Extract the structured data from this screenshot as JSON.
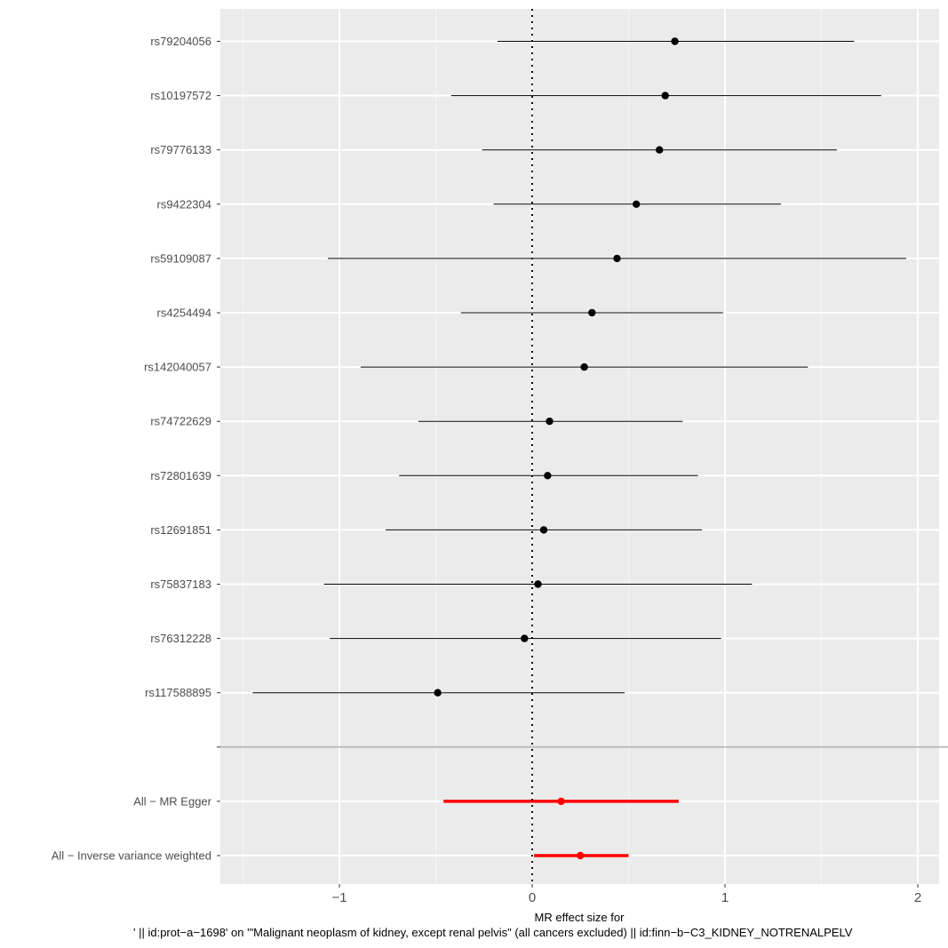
{
  "chart_data": {
    "type": "forest",
    "xlabel_line1": "MR effect size for",
    "xlabel_line2": "' || id:prot−a−1698' on '\"Malignant neoplasm of kidney, except renal pelvis\" (all cancers excluded) || id:finn−b−C3_KIDNEY_NOTRENALPELV",
    "xlim": [
      -1.6,
      2.12
    ],
    "x_ticks": [
      {
        "value": -1,
        "label": "−1"
      },
      {
        "value": 0,
        "label": "0"
      },
      {
        "value": 1,
        "label": "1"
      },
      {
        "value": 2,
        "label": "2"
      }
    ],
    "reference_line": 0,
    "rows": [
      {
        "label": "rs79204056",
        "b": 0.74,
        "lo": -0.18,
        "hi": 1.67,
        "color": "#000000",
        "summary": false
      },
      {
        "label": "rs10197572",
        "b": 0.69,
        "lo": -0.42,
        "hi": 1.81,
        "color": "#000000",
        "summary": false
      },
      {
        "label": "rs79776133",
        "b": 0.66,
        "lo": -0.26,
        "hi": 1.58,
        "color": "#000000",
        "summary": false
      },
      {
        "label": "rs9422304",
        "b": 0.54,
        "lo": -0.2,
        "hi": 1.29,
        "color": "#000000",
        "summary": false
      },
      {
        "label": "rs59109087",
        "b": 0.44,
        "lo": -1.06,
        "hi": 1.94,
        "color": "#000000",
        "summary": false
      },
      {
        "label": "rs4254494",
        "b": 0.31,
        "lo": -0.37,
        "hi": 0.99,
        "color": "#000000",
        "summary": false
      },
      {
        "label": "rs142040057",
        "b": 0.27,
        "lo": -0.89,
        "hi": 1.43,
        "color": "#000000",
        "summary": false
      },
      {
        "label": "rs74722629",
        "b": 0.09,
        "lo": -0.59,
        "hi": 0.78,
        "color": "#000000",
        "summary": false
      },
      {
        "label": "rs72801639",
        "b": 0.08,
        "lo": -0.69,
        "hi": 0.86,
        "color": "#000000",
        "summary": false
      },
      {
        "label": "rs12691851",
        "b": 0.06,
        "lo": -0.76,
        "hi": 0.88,
        "color": "#000000",
        "summary": false
      },
      {
        "label": "rs75837183",
        "b": 0.03,
        "lo": -1.08,
        "hi": 1.14,
        "color": "#000000",
        "summary": false
      },
      {
        "label": "rs76312228",
        "b": -0.04,
        "lo": -1.05,
        "hi": 0.98,
        "color": "#000000",
        "summary": false
      },
      {
        "label": "rs117588895",
        "b": -0.49,
        "lo": -1.45,
        "hi": 0.48,
        "color": "#000000",
        "summary": false
      },
      {
        "label": "",
        "separator": true
      },
      {
        "label": "All − MR Egger",
        "b": 0.15,
        "lo": -0.46,
        "hi": 0.76,
        "color": "#ff0000",
        "summary": true
      },
      {
        "label": "All − Inverse variance weighted",
        "b": 0.25,
        "lo": 0.01,
        "hi": 0.5,
        "color": "#ff0000",
        "summary": true
      }
    ]
  }
}
